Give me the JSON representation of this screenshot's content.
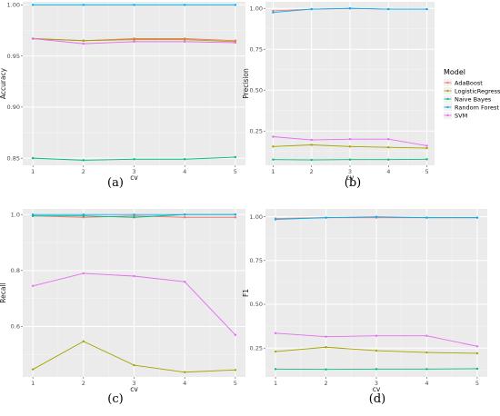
{
  "legend": {
    "title": "Model",
    "entries": [
      {
        "name": "AdaBoost",
        "color": "#F8766D"
      },
      {
        "name": "LogisticRegression",
        "color": "#A3A500"
      },
      {
        "name": "Naive Bayes",
        "color": "#00BF7D"
      },
      {
        "name": "Random Forest",
        "color": "#00B0F6"
      },
      {
        "name": "SVM",
        "color": "#E76BF3"
      }
    ]
  },
  "chart_data": [
    {
      "type": "line",
      "caption": "(a)",
      "xlabel": "cv",
      "ylabel": "Accuracy",
      "x": [
        1,
        2,
        3,
        4,
        5
      ],
      "ylim": [
        0.843,
        1.003
      ],
      "yticks": [
        "0.85",
        "0.90",
        "0.95",
        "1.00"
      ],
      "ytick_values": [
        0.85,
        0.9,
        0.95,
        1.0
      ],
      "grid": true,
      "series": [
        {
          "name": "AdaBoost",
          "values": [
            0.967,
            0.965,
            0.967,
            0.967,
            0.965
          ]
        },
        {
          "name": "LogisticRegression",
          "values": [
            0.967,
            0.965,
            0.966,
            0.966,
            0.964
          ]
        },
        {
          "name": "Naive Bayes",
          "values": [
            0.85,
            0.848,
            0.849,
            0.849,
            0.851
          ]
        },
        {
          "name": "Random Forest",
          "values": [
            1.0,
            1.0,
            1.0,
            1.0,
            1.0
          ]
        },
        {
          "name": "SVM",
          "values": [
            0.967,
            0.962,
            0.964,
            0.964,
            0.963
          ]
        }
      ]
    },
    {
      "type": "line",
      "caption": "(b)",
      "xlabel": "cv",
      "ylabel": "Precision",
      "x": [
        1,
        2,
        3,
        4,
        5
      ],
      "ylim": [
        0.04,
        1.04
      ],
      "yticks": [
        "0.25",
        "0.50",
        "0.75",
        "1.00"
      ],
      "ytick_values": [
        0.25,
        0.5,
        0.75,
        1.0
      ],
      "grid": true,
      "series": [
        {
          "name": "AdaBoost",
          "values": [
            0.985,
            0.995,
            1.0,
            0.995,
            0.995
          ]
        },
        {
          "name": "LogisticRegression",
          "values": [
            0.155,
            0.165,
            0.155,
            0.15,
            0.145
          ]
        },
        {
          "name": "Naive Bayes",
          "values": [
            0.075,
            0.073,
            0.075,
            0.075,
            0.077
          ]
        },
        {
          "name": "Random Forest",
          "values": [
            0.975,
            0.995,
            1.0,
            0.995,
            0.995
          ]
        },
        {
          "name": "SVM",
          "values": [
            0.215,
            0.195,
            0.2,
            0.2,
            0.16
          ]
        }
      ]
    },
    {
      "type": "line",
      "caption": "(c)",
      "xlabel": "cv",
      "ylabel": "Recall",
      "x": [
        1,
        2,
        3,
        4,
        5
      ],
      "ylim": [
        0.42,
        1.02
      ],
      "yticks": [
        "0.6",
        "0.8",
        "1.0"
      ],
      "ytick_values": [
        0.6,
        0.8,
        1.0
      ],
      "grid": true,
      "series": [
        {
          "name": "AdaBoost",
          "values": [
            0.995,
            0.99,
            0.995,
            0.99,
            0.99
          ]
        },
        {
          "name": "LogisticRegression",
          "values": [
            0.447,
            0.547,
            0.462,
            0.437,
            0.445
          ]
        },
        {
          "name": "Naive Bayes",
          "values": [
            0.995,
            0.995,
            0.99,
            1.0,
            1.0
          ]
        },
        {
          "name": "Random Forest",
          "values": [
            1.0,
            1.0,
            1.0,
            1.0,
            1.0
          ]
        },
        {
          "name": "SVM",
          "values": [
            0.745,
            0.79,
            0.78,
            0.76,
            0.57
          ]
        }
      ]
    },
    {
      "type": "line",
      "caption": "(d)",
      "xlabel": "cv",
      "ylabel": "F1",
      "x": [
        1,
        2,
        3,
        4,
        5
      ],
      "ylim": [
        0.085,
        1.045
      ],
      "yticks": [
        "0.25",
        "0.50",
        "0.75",
        "1.00"
      ],
      "ytick_values": [
        0.25,
        0.5,
        0.75,
        1.0
      ],
      "grid": true,
      "series": [
        {
          "name": "AdaBoost",
          "values": [
            0.99,
            0.995,
            0.995,
            0.995,
            0.995
          ]
        },
        {
          "name": "LogisticRegression",
          "values": [
            0.23,
            0.255,
            0.235,
            0.225,
            0.22
          ]
        },
        {
          "name": "Naive Bayes",
          "values": [
            0.13,
            0.128,
            0.13,
            0.13,
            0.132
          ]
        },
        {
          "name": "Random Forest",
          "values": [
            0.985,
            0.995,
            1.0,
            0.995,
            0.995
          ]
        },
        {
          "name": "SVM",
          "values": [
            0.335,
            0.315,
            0.32,
            0.32,
            0.26
          ]
        }
      ]
    }
  ]
}
